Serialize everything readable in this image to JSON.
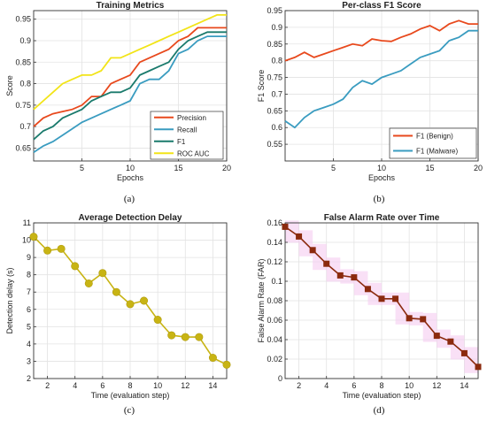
{
  "captions": [
    "(a)",
    "(b)",
    "(c)",
    "(d)"
  ],
  "chart_data": [
    {
      "type": "line",
      "title": "Training Metrics",
      "xlabel": "Epochs",
      "ylabel": "Score",
      "xlim": [
        0,
        20
      ],
      "ylim": [
        0.62,
        0.97
      ],
      "xticks": [
        5,
        10,
        15,
        20
      ],
      "yticks": [
        0.65,
        0.7,
        0.75,
        0.8,
        0.85,
        0.9,
        0.95
      ],
      "grid": true,
      "legend": "bottom-right",
      "x": [
        0,
        1,
        2,
        3,
        4,
        5,
        6,
        7,
        8,
        9,
        10,
        11,
        12,
        13,
        14,
        15,
        16,
        17,
        18,
        19,
        20
      ],
      "series": [
        {
          "name": "Precision",
          "color": "#e8491d",
          "values": [
            0.7,
            0.72,
            0.73,
            0.735,
            0.74,
            0.75,
            0.77,
            0.77,
            0.8,
            0.81,
            0.82,
            0.85,
            0.86,
            0.87,
            0.88,
            0.9,
            0.91,
            0.93,
            0.93,
            0.93,
            0.93
          ]
        },
        {
          "name": "Recall",
          "color": "#3a9cc0",
          "values": [
            0.64,
            0.655,
            0.665,
            0.68,
            0.695,
            0.71,
            0.72,
            0.73,
            0.74,
            0.75,
            0.76,
            0.8,
            0.81,
            0.81,
            0.83,
            0.87,
            0.88,
            0.9,
            0.91,
            0.91,
            0.91
          ]
        },
        {
          "name": "F1",
          "color": "#1a7a6c",
          "values": [
            0.67,
            0.69,
            0.7,
            0.72,
            0.73,
            0.74,
            0.76,
            0.77,
            0.78,
            0.78,
            0.79,
            0.82,
            0.83,
            0.84,
            0.85,
            0.88,
            0.9,
            0.91,
            0.92,
            0.92,
            0.92
          ]
        },
        {
          "name": "ROC AUC",
          "color": "#f2e418",
          "values": [
            0.74,
            0.76,
            0.78,
            0.8,
            0.81,
            0.82,
            0.82,
            0.83,
            0.86,
            0.86,
            0.87,
            0.88,
            0.89,
            0.9,
            0.91,
            0.92,
            0.93,
            0.94,
            0.95,
            0.96,
            0.96
          ]
        }
      ]
    },
    {
      "type": "line",
      "title": "Per-class F1 Score",
      "xlabel": "Epochs",
      "ylabel": "F1 Score",
      "xlim": [
        0,
        20
      ],
      "ylim": [
        0.5,
        0.95
      ],
      "xticks": [
        5,
        10,
        15,
        20
      ],
      "yticks": [
        0.55,
        0.6,
        0.65,
        0.7,
        0.75,
        0.8,
        0.85,
        0.9,
        0.95
      ],
      "grid": true,
      "legend": "bottom-right",
      "x": [
        0,
        1,
        2,
        3,
        4,
        5,
        6,
        7,
        8,
        9,
        10,
        11,
        12,
        13,
        14,
        15,
        16,
        17,
        18,
        19,
        20
      ],
      "series": [
        {
          "name": "F1 (Benign)",
          "color": "#e8491d",
          "values": [
            0.8,
            0.81,
            0.825,
            0.81,
            0.82,
            0.83,
            0.84,
            0.85,
            0.845,
            0.865,
            0.86,
            0.858,
            0.87,
            0.88,
            0.895,
            0.905,
            0.89,
            0.91,
            0.92,
            0.91,
            0.91
          ]
        },
        {
          "name": "F1 (Malware)",
          "color": "#3a9cc0",
          "values": [
            0.62,
            0.6,
            0.63,
            0.65,
            0.66,
            0.67,
            0.685,
            0.72,
            0.74,
            0.73,
            0.75,
            0.76,
            0.77,
            0.79,
            0.81,
            0.82,
            0.83,
            0.86,
            0.87,
            0.89,
            0.89
          ]
        }
      ]
    },
    {
      "type": "line",
      "title": "Average Detection Delay",
      "xlabel": "Time (evaluation step)",
      "ylabel": "Detection delay (s)",
      "xlim": [
        1,
        15
      ],
      "ylim": [
        2,
        11
      ],
      "xticks": [
        2,
        4,
        6,
        8,
        10,
        12,
        14
      ],
      "yticks": [
        2,
        3,
        4,
        5,
        6,
        7,
        8,
        9,
        10,
        11
      ],
      "grid": true,
      "marker": "circle",
      "series": [
        {
          "name": "",
          "color": "#c8b414",
          "x": [
            1,
            2,
            3,
            4,
            5,
            6,
            7,
            8,
            9,
            10,
            11,
            12,
            13,
            14,
            15
          ],
          "values": [
            10.2,
            9.4,
            9.5,
            8.5,
            7.5,
            8.1,
            7.0,
            6.3,
            6.5,
            5.4,
            4.5,
            4.4,
            4.4,
            3.2,
            2.8
          ]
        }
      ]
    },
    {
      "type": "line",
      "title": "False Alarm Rate over Time",
      "xlabel": "Time (evaluation step)",
      "ylabel": "False Alarm Rate (FAR)",
      "xlim": [
        1,
        15
      ],
      "ylim": [
        0,
        0.16
      ],
      "xticks": [
        2,
        4,
        6,
        8,
        10,
        12,
        14
      ],
      "yticks": [
        0,
        0.02,
        0.04,
        0.06,
        0.08,
        0.1,
        0.12,
        0.14,
        0.16
      ],
      "grid": true,
      "marker": "square",
      "band_color": "#f4c6ee",
      "series": [
        {
          "name": "",
          "color": "#8b2a0e",
          "x": [
            1,
            2,
            3,
            4,
            5,
            6,
            7,
            8,
            9,
            10,
            11,
            12,
            13,
            14,
            15
          ],
          "values": [
            0.156,
            0.146,
            0.132,
            0.118,
            0.106,
            0.104,
            0.092,
            0.082,
            0.082,
            0.062,
            0.061,
            0.044,
            0.038,
            0.026,
            0.012
          ]
        }
      ]
    }
  ]
}
